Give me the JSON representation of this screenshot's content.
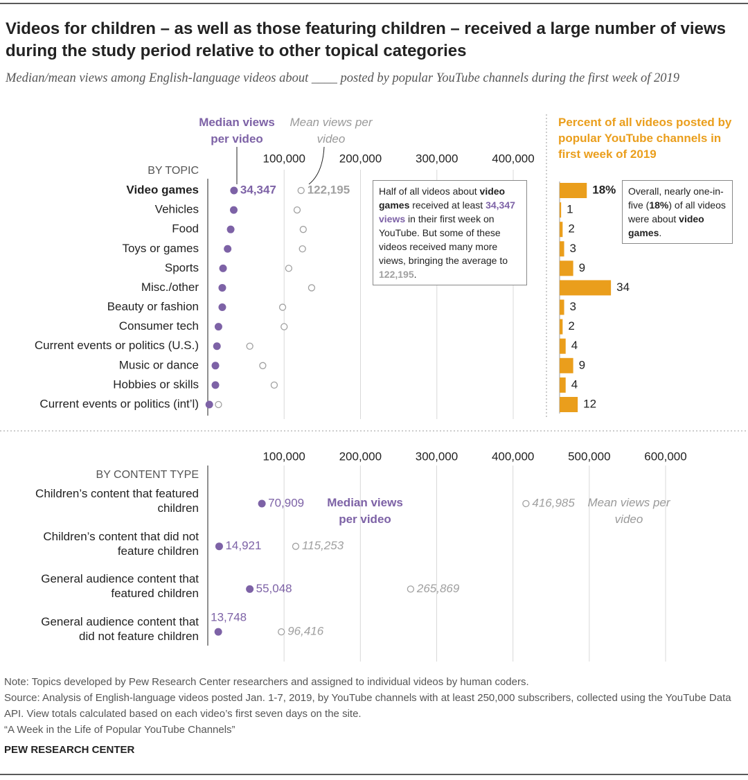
{
  "title": "Videos for children – as well as those featuring children – received a large number of views during the study period relative to other topical categories",
  "subtitle": "Median/mean views among English-language videos about ____ posted by popular YouTube channels during the first week of 2019",
  "note": "Note: Topics developed by Pew Research Center researchers and assigned to individual videos by human coders.",
  "source": "Source: Analysis of English-language videos posted Jan. 1-7, 2019, by YouTube channels with at least 250,000 subscribers, collected using the YouTube Data API. View totals calculated based on each video’s first seven days on the site.",
  "report": "“A Week in the Life of Popular YouTube Channels”",
  "credit": "PEW RESEARCH CENTER",
  "chart_data": [
    {
      "type": "dot",
      "y_label": "BY TOPIC",
      "categories": [
        "Video games",
        "Vehicles",
        "Food",
        "Toys or games",
        "Sports",
        "Misc./other",
        "Beauty or fashion",
        "Consumer tech",
        "Current events or politics (U.S.)",
        "Music or dance",
        "Hobbies or skills",
        "Current events or politics (int’l)"
      ],
      "series": [
        {
          "name": "Median views per video",
          "color": "#7d62a6",
          "values": [
            34347,
            34000,
            30000,
            26000,
            20000,
            19000,
            19000,
            14000,
            12000,
            10000,
            10000,
            2000
          ],
          "value_labels": [
            "34,347",
            null,
            null,
            null,
            null,
            null,
            null,
            null,
            null,
            null,
            null,
            null
          ]
        },
        {
          "name": "Mean views per video",
          "color": "#a0a0a0",
          "values": [
            122195,
            117000,
            125000,
            124000,
            106000,
            136000,
            98000,
            100000,
            55000,
            72000,
            87000,
            14000
          ],
          "value_labels": [
            "122,195",
            null,
            null,
            null,
            null,
            null,
            null,
            null,
            null,
            null,
            null,
            null
          ]
        }
      ],
      "xlim": [
        0,
        400000
      ],
      "xticks": [
        {
          "value": 100000,
          "label": "100,000"
        },
        {
          "value": 200000,
          "label": "200,000"
        },
        {
          "value": 300000,
          "label": "300,000"
        },
        {
          "value": 400000,
          "label": "400,000"
        }
      ],
      "grid": true,
      "annotation": [
        "Half of all videos about ",
        "video games",
        " received at least ",
        "34,347 views",
        " in their first week on YouTube. But some of these videos received many more views, bringing the average to ",
        "122,195",
        "."
      ]
    },
    {
      "type": "bar",
      "title": "Percent of all videos posted by popular YouTube channels in first week of 2019",
      "color": "#ea9e1c",
      "values": [
        18,
        1,
        2,
        3,
        9,
        34,
        3,
        2,
        4,
        9,
        4,
        12
      ],
      "value_labels": [
        "18%",
        "1",
        "2",
        "3",
        "9",
        "34",
        "3",
        "2",
        "4",
        "9",
        "4",
        "12"
      ],
      "annotation": [
        "Overall, nearly one-in-five (",
        "18%",
        ") of all videos were about ",
        "video games",
        "."
      ]
    },
    {
      "type": "dot",
      "y_label": "BY CONTENT TYPE",
      "categories": [
        "Children’s content that featured children",
        "Children’s content that did not feature children",
        "General audience content that featured children",
        "General audience content that did not feature children"
      ],
      "series": [
        {
          "name": "Median views per video",
          "color": "#7d62a6",
          "values": [
            70909,
            14921,
            55048,
            13748
          ],
          "value_labels": [
            "70,909",
            "14,921",
            "55,048",
            "13,748"
          ]
        },
        {
          "name": "Mean views per video",
          "color": "#a0a0a0",
          "values": [
            416985,
            115253,
            265869,
            96416
          ],
          "value_labels": [
            "416,985",
            "115,253",
            "265,869",
            "96,416"
          ]
        }
      ],
      "xlim": [
        0,
        600000
      ],
      "xticks": [
        {
          "value": 100000,
          "label": "100,000"
        },
        {
          "value": 200000,
          "label": "200,000"
        },
        {
          "value": 300000,
          "label": "300,000"
        },
        {
          "value": 400000,
          "label": "400,000"
        },
        {
          "value": 500000,
          "label": "500,000"
        },
        {
          "value": 600000,
          "label": "600,000"
        }
      ],
      "grid": true
    }
  ]
}
